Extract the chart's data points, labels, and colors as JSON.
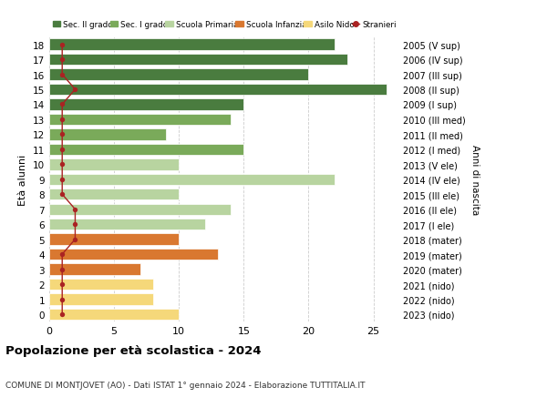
{
  "ages": [
    18,
    17,
    16,
    15,
    14,
    13,
    12,
    11,
    10,
    9,
    8,
    7,
    6,
    5,
    4,
    3,
    2,
    1,
    0
  ],
  "years": [
    "2005 (V sup)",
    "2006 (IV sup)",
    "2007 (III sup)",
    "2008 (II sup)",
    "2009 (I sup)",
    "2010 (III med)",
    "2011 (II med)",
    "2012 (I med)",
    "2013 (V ele)",
    "2014 (IV ele)",
    "2015 (III ele)",
    "2016 (II ele)",
    "2017 (I ele)",
    "2018 (mater)",
    "2019 (mater)",
    "2020 (mater)",
    "2021 (nido)",
    "2022 (nido)",
    "2023 (nido)"
  ],
  "bar_values": [
    22,
    23,
    20,
    26,
    15,
    14,
    9,
    15,
    10,
    22,
    10,
    14,
    12,
    10,
    13,
    7,
    8,
    8,
    10
  ],
  "stranieri_values": [
    1,
    1,
    1,
    2,
    1,
    1,
    1,
    1,
    1,
    1,
    1,
    2,
    2,
    2,
    1,
    1,
    1,
    1,
    1
  ],
  "bar_colors": [
    "#4a7c3f",
    "#4a7c3f",
    "#4a7c3f",
    "#4a7c3f",
    "#4a7c3f",
    "#7aaa5a",
    "#7aaa5a",
    "#7aaa5a",
    "#b8d4a0",
    "#b8d4a0",
    "#b8d4a0",
    "#b8d4a0",
    "#b8d4a0",
    "#d97830",
    "#d97830",
    "#d97830",
    "#f5d87a",
    "#f5d87a",
    "#f5d87a"
  ],
  "color_sec2": "#4a7c3f",
  "color_sec1": "#7aaa5a",
  "color_prim": "#b8d4a0",
  "color_inf": "#d97830",
  "color_nido": "#f5d87a",
  "color_stranieri": "#aa2222",
  "title": "Popolazione per età scolastica - 2024",
  "subtitle": "COMUNE DI MONTJOVET (AO) - Dati ISTAT 1° gennaio 2024 - Elaborazione TUTTITALIA.IT",
  "ylabel": "Età alunni",
  "right_label": "Anni di nascita",
  "xlim": [
    0,
    27
  ],
  "xlabel_ticks": [
    0,
    5,
    10,
    15,
    20,
    25
  ],
  "bg_color": "#ffffff",
  "grid_color": "#cccccc"
}
